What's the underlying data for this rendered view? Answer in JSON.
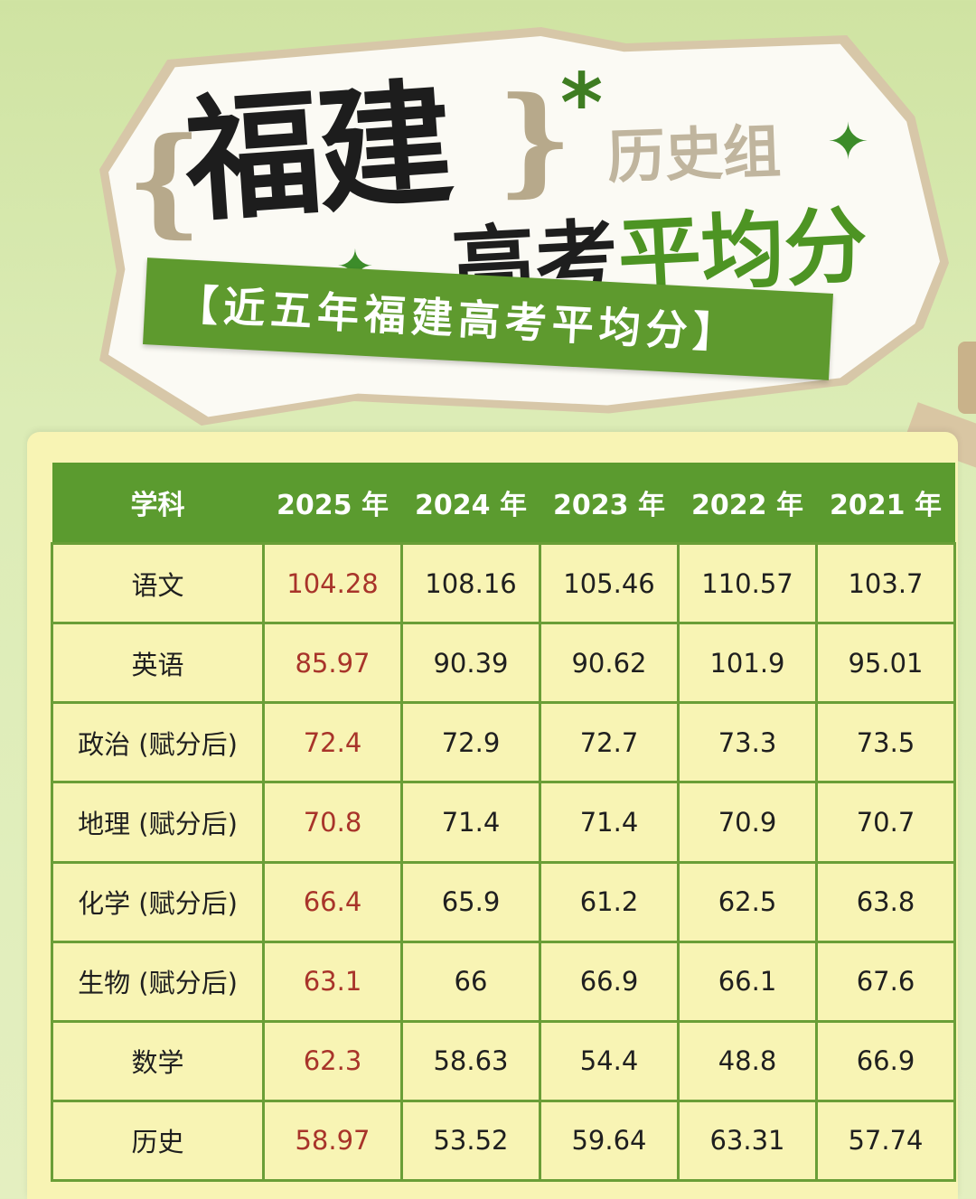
{
  "header": {
    "brace_left": "{",
    "title": "福建",
    "brace_right": "}",
    "asterisk": "*",
    "group": "历史组",
    "exam_prefix": "高考",
    "exam_accent": "平均分",
    "banner": "【近五年福建高考平均分】",
    "colors": {
      "accent_green": "#4d9423",
      "banner_green": "#5e9a2e",
      "highlight_red": "#a8342a"
    }
  },
  "icons": {
    "sparkle": "four-point-star-icon"
  },
  "table": {
    "headers": [
      "学科",
      "2025 年",
      "2024 年",
      "2023 年",
      "2022 年",
      "2021 年"
    ],
    "rows": [
      {
        "subject": "语文",
        "values": [
          "104.28",
          "108.16",
          "105.46",
          "110.57",
          "103.7"
        ]
      },
      {
        "subject": "英语",
        "values": [
          "85.97",
          "90.39",
          "90.62",
          "101.9",
          "95.01"
        ]
      },
      {
        "subject": "政治 (赋分后)",
        "values": [
          "72.4",
          "72.9",
          "72.7",
          "73.3",
          "73.5"
        ]
      },
      {
        "subject": "地理 (赋分后)",
        "values": [
          "70.8",
          "71.4",
          "71.4",
          "70.9",
          "70.7"
        ]
      },
      {
        "subject": "化学 (赋分后)",
        "values": [
          "66.4",
          "65.9",
          "61.2",
          "62.5",
          "63.8"
        ]
      },
      {
        "subject": "生物 (赋分后)",
        "values": [
          "63.1",
          "66",
          "66.9",
          "66.1",
          "67.6"
        ]
      },
      {
        "subject": "数学",
        "values": [
          "62.3",
          "58.63",
          "54.4",
          "48.8",
          "66.9"
        ]
      },
      {
        "subject": "历史",
        "values": [
          "58.97",
          "53.52",
          "59.64",
          "63.31",
          "57.74"
        ]
      }
    ]
  }
}
